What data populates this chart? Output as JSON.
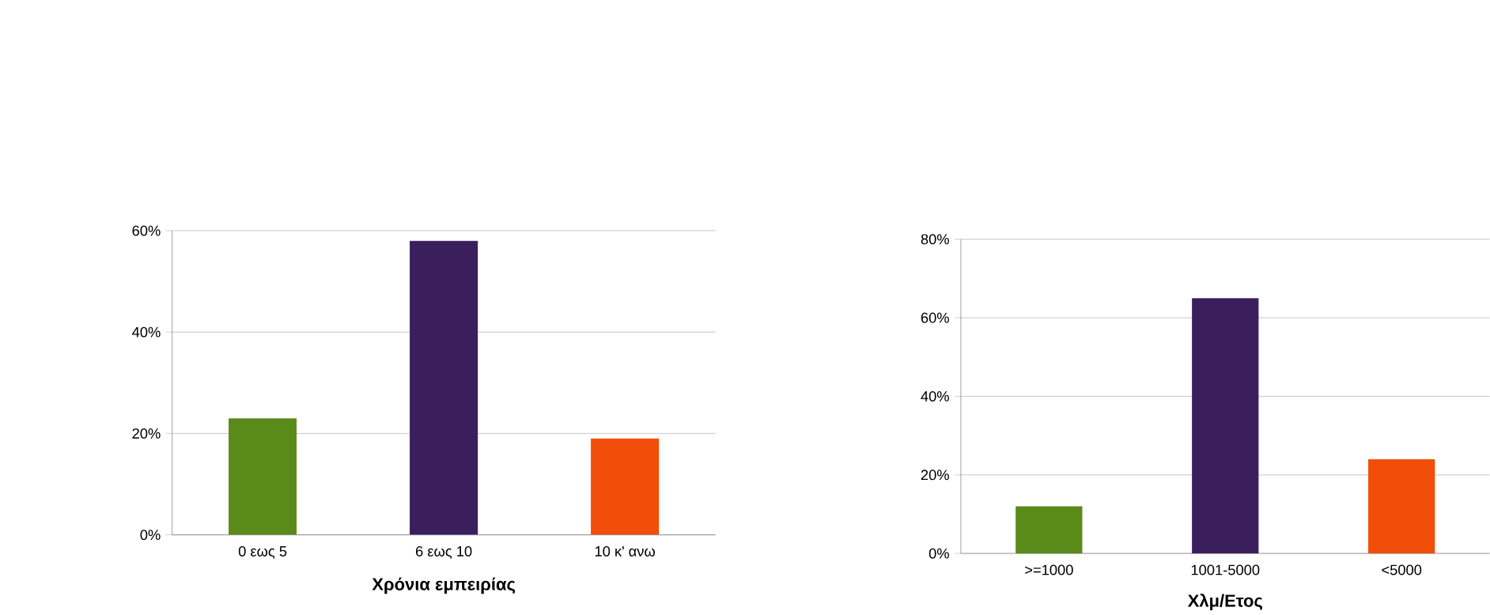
{
  "chart_data": [
    {
      "type": "bar",
      "xlabel": "Χρόνια εμπειρίας",
      "categories": [
        "0 εως 5",
        "6 εως 10",
        "10 κ' ανω"
      ],
      "values": [
        23,
        58,
        19
      ],
      "colors": [
        "#5a8a1a",
        "#3a1f5c",
        "#f04e0a"
      ],
      "ylim": [
        0,
        60
      ],
      "yticks": [
        {
          "value": 0,
          "label": "0%"
        },
        {
          "value": 20,
          "label": "20%"
        },
        {
          "value": 40,
          "label": "40%"
        },
        {
          "value": 60,
          "label": "60%"
        }
      ],
      "grid": "y"
    },
    {
      "type": "bar",
      "xlabel": "Χλμ/Ετος",
      "categories": [
        ">=1000",
        "1001-5000",
        "<5000"
      ],
      "values": [
        12,
        65,
        24
      ],
      "colors": [
        "#5a8a1a",
        "#3a1f5c",
        "#f04e0a"
      ],
      "ylim": [
        0,
        80
      ],
      "yticks": [
        {
          "value": 0,
          "label": "0%"
        },
        {
          "value": 20,
          "label": "20%"
        },
        {
          "value": 40,
          "label": "40%"
        },
        {
          "value": 60,
          "label": "60%"
        },
        {
          "value": 80,
          "label": "80%"
        }
      ],
      "grid": "y"
    }
  ]
}
